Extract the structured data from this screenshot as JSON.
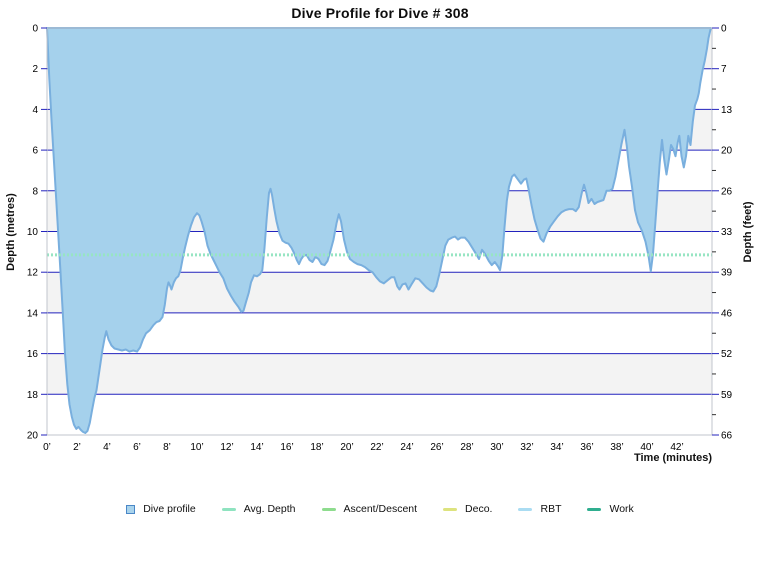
{
  "chart_data": {
    "type": "area",
    "title": "Dive Profile for Dive # 308",
    "x_axis": {
      "label": "Time (minutes)",
      "min": 0,
      "max": 44.33,
      "tick_interval_minutes": 2,
      "tick_labels": [
        "0’",
        "2’",
        "4’",
        "6’",
        "8’",
        "10’",
        "12’",
        "14’",
        "16’",
        "18’",
        "20’",
        "22’",
        "24’",
        "26’",
        "28’",
        "30’",
        "32’",
        "34’",
        "36’",
        "38’",
        "40’",
        "42’"
      ]
    },
    "y_axis_left": {
      "label": "Depth (metres)",
      "min": 0,
      "max": 20,
      "ticks": [
        0,
        2,
        4,
        6,
        8,
        10,
        12,
        14,
        16,
        18,
        20
      ]
    },
    "y_axis_right": {
      "label": "Depth (feet)",
      "tick_labels": [
        "0",
        "7",
        "13",
        "20",
        "26",
        "33",
        "39",
        "46",
        "52",
        "59",
        "66"
      ]
    },
    "avg_depth_m": 11.15,
    "grid": "horizontal lines every 2 m with alternating shaded bands",
    "legend_position": "bottom",
    "series": [
      {
        "name": "Dive profile",
        "units": {
          "x": "minutes",
          "y": "metres"
        },
        "points": [
          [
            0,
            0
          ],
          [
            0.15,
            2.5
          ],
          [
            0.3,
            4.5
          ],
          [
            0.5,
            7
          ],
          [
            0.7,
            9.5
          ],
          [
            0.9,
            12
          ],
          [
            1.05,
            14
          ],
          [
            1.2,
            16
          ],
          [
            1.35,
            17.5
          ],
          [
            1.5,
            18.5
          ],
          [
            1.65,
            19.1
          ],
          [
            1.8,
            19.5
          ],
          [
            1.95,
            19.7
          ],
          [
            2.1,
            19.6
          ],
          [
            2.25,
            19.75
          ],
          [
            2.4,
            19.85
          ],
          [
            2.55,
            19.9
          ],
          [
            2.7,
            19.8
          ],
          [
            2.85,
            19.4
          ],
          [
            3,
            18.8
          ],
          [
            3.15,
            18.2
          ],
          [
            3.3,
            17.8
          ],
          [
            3.5,
            16.8
          ],
          [
            3.7,
            15.8
          ],
          [
            3.85,
            15.2
          ],
          [
            3.95,
            14.9
          ],
          [
            4.1,
            15.3
          ],
          [
            4.3,
            15.6
          ],
          [
            4.5,
            15.75
          ],
          [
            4.75,
            15.8
          ],
          [
            5,
            15.85
          ],
          [
            5.25,
            15.8
          ],
          [
            5.5,
            15.9
          ],
          [
            5.75,
            15.85
          ],
          [
            6,
            15.9
          ],
          [
            6.2,
            15.7
          ],
          [
            6.4,
            15.3
          ],
          [
            6.6,
            15
          ],
          [
            6.85,
            14.85
          ],
          [
            7.1,
            14.6
          ],
          [
            7.3,
            14.45
          ],
          [
            7.5,
            14.4
          ],
          [
            7.7,
            14.2
          ],
          [
            7.85,
            13.6
          ],
          [
            8,
            12.8
          ],
          [
            8.1,
            12.5
          ],
          [
            8.2,
            12.65
          ],
          [
            8.3,
            12.85
          ],
          [
            8.45,
            12.5
          ],
          [
            8.6,
            12.3
          ],
          [
            8.75,
            12.2
          ],
          [
            8.9,
            11.9
          ],
          [
            9.05,
            11.3
          ],
          [
            9.2,
            10.8
          ],
          [
            9.4,
            10.2
          ],
          [
            9.6,
            9.7
          ],
          [
            9.8,
            9.3
          ],
          [
            10,
            9.1
          ],
          [
            10.15,
            9.2
          ],
          [
            10.3,
            9.5
          ],
          [
            10.5,
            10
          ],
          [
            10.7,
            10.7
          ],
          [
            10.9,
            11.1
          ],
          [
            11.1,
            11.4
          ],
          [
            11.3,
            11.7
          ],
          [
            11.5,
            12
          ],
          [
            11.75,
            12.3
          ],
          [
            12,
            12.8
          ],
          [
            12.25,
            13.15
          ],
          [
            12.5,
            13.45
          ],
          [
            12.75,
            13.7
          ],
          [
            12.95,
            13.95
          ],
          [
            13.1,
            13.9
          ],
          [
            13.25,
            13.5
          ],
          [
            13.45,
            13
          ],
          [
            13.6,
            12.5
          ],
          [
            13.8,
            12.15
          ],
          [
            14,
            12.2
          ],
          [
            14.2,
            12.1
          ],
          [
            14.35,
            11.9
          ],
          [
            14.5,
            10.8
          ],
          [
            14.65,
            9.3
          ],
          [
            14.8,
            8.1
          ],
          [
            14.9,
            7.9
          ],
          [
            15,
            8.2
          ],
          [
            15.15,
            8.9
          ],
          [
            15.3,
            9.5
          ],
          [
            15.5,
            10.1
          ],
          [
            15.7,
            10.45
          ],
          [
            15.9,
            10.55
          ],
          [
            16.1,
            10.6
          ],
          [
            16.3,
            10.8
          ],
          [
            16.5,
            11.1
          ],
          [
            16.65,
            11.4
          ],
          [
            16.8,
            11.6
          ],
          [
            16.95,
            11.35
          ],
          [
            17.1,
            11.2
          ],
          [
            17.3,
            11.15
          ],
          [
            17.5,
            11.4
          ],
          [
            17.7,
            11.5
          ],
          [
            17.9,
            11.25
          ],
          [
            18.1,
            11.35
          ],
          [
            18.3,
            11.6
          ],
          [
            18.5,
            11.65
          ],
          [
            18.7,
            11.45
          ],
          [
            18.9,
            10.95
          ],
          [
            19.1,
            10.4
          ],
          [
            19.3,
            9.6
          ],
          [
            19.45,
            9.15
          ],
          [
            19.6,
            9.5
          ],
          [
            19.8,
            10.4
          ],
          [
            20,
            11
          ],
          [
            20.2,
            11.35
          ],
          [
            20.45,
            11.5
          ],
          [
            20.7,
            11.6
          ],
          [
            20.95,
            11.65
          ],
          [
            21.2,
            11.75
          ],
          [
            21.45,
            11.9
          ],
          [
            21.7,
            12
          ],
          [
            21.95,
            12.25
          ],
          [
            22.2,
            12.45
          ],
          [
            22.45,
            12.55
          ],
          [
            22.7,
            12.4
          ],
          [
            22.95,
            12.25
          ],
          [
            23.15,
            12.25
          ],
          [
            23.35,
            12.7
          ],
          [
            23.5,
            12.85
          ],
          [
            23.7,
            12.6
          ],
          [
            23.9,
            12.55
          ],
          [
            24.1,
            12.85
          ],
          [
            24.3,
            12.6
          ],
          [
            24.55,
            12.3
          ],
          [
            24.8,
            12.35
          ],
          [
            25.05,
            12.55
          ],
          [
            25.3,
            12.75
          ],
          [
            25.55,
            12.9
          ],
          [
            25.75,
            12.95
          ],
          [
            25.95,
            12.7
          ],
          [
            26.15,
            12.1
          ],
          [
            26.35,
            11.4
          ],
          [
            26.55,
            10.7
          ],
          [
            26.75,
            10.4
          ],
          [
            27,
            10.3
          ],
          [
            27.2,
            10.25
          ],
          [
            27.4,
            10.4
          ],
          [
            27.6,
            10.3
          ],
          [
            27.85,
            10.3
          ],
          [
            28.1,
            10.5
          ],
          [
            28.35,
            10.8
          ],
          [
            28.6,
            11.1
          ],
          [
            28.8,
            11.35
          ],
          [
            29,
            10.9
          ],
          [
            29.2,
            11.1
          ],
          [
            29.45,
            11.45
          ],
          [
            29.65,
            11.65
          ],
          [
            29.85,
            11.5
          ],
          [
            30.05,
            11.7
          ],
          [
            30.2,
            11.9
          ],
          [
            30.35,
            11.2
          ],
          [
            30.5,
            9.8
          ],
          [
            30.65,
            8.5
          ],
          [
            30.8,
            7.8
          ],
          [
            31,
            7.3
          ],
          [
            31.15,
            7.2
          ],
          [
            31.35,
            7.4
          ],
          [
            31.6,
            7.65
          ],
          [
            31.8,
            7.45
          ],
          [
            31.95,
            7.4
          ],
          [
            32.1,
            7.9
          ],
          [
            32.3,
            8.7
          ],
          [
            32.5,
            9.4
          ],
          [
            32.7,
            9.9
          ],
          [
            32.9,
            10.35
          ],
          [
            33.1,
            10.5
          ],
          [
            33.3,
            10.1
          ],
          [
            33.55,
            9.75
          ],
          [
            33.8,
            9.5
          ],
          [
            34.05,
            9.25
          ],
          [
            34.3,
            9.05
          ],
          [
            34.55,
            8.95
          ],
          [
            34.8,
            8.9
          ],
          [
            35.05,
            8.9
          ],
          [
            35.25,
            9
          ],
          [
            35.45,
            8.8
          ],
          [
            35.65,
            8.1
          ],
          [
            35.8,
            7.7
          ],
          [
            35.95,
            8.1
          ],
          [
            36.1,
            8.6
          ],
          [
            36.3,
            8.4
          ],
          [
            36.5,
            8.65
          ],
          [
            36.7,
            8.55
          ],
          [
            36.9,
            8.5
          ],
          [
            37.1,
            8.45
          ],
          [
            37.3,
            8
          ],
          [
            37.5,
            8
          ],
          [
            37.7,
            7.9
          ],
          [
            37.9,
            7.3
          ],
          [
            38.1,
            6.5
          ],
          [
            38.3,
            5.7
          ],
          [
            38.5,
            5
          ],
          [
            38.65,
            5.8
          ],
          [
            38.8,
            6.8
          ],
          [
            39,
            7.8
          ],
          [
            39.2,
            8.95
          ],
          [
            39.4,
            9.55
          ],
          [
            39.65,
            9.95
          ],
          [
            39.9,
            10.5
          ],
          [
            40.1,
            11.2
          ],
          [
            40.25,
            11.95
          ],
          [
            40.4,
            11.1
          ],
          [
            40.55,
            9.6
          ],
          [
            40.7,
            8.1
          ],
          [
            40.85,
            6.6
          ],
          [
            41,
            5.5
          ],
          [
            41.15,
            6.5
          ],
          [
            41.3,
            7.2
          ],
          [
            41.45,
            6.5
          ],
          [
            41.6,
            5.75
          ],
          [
            41.75,
            5.95
          ],
          [
            41.9,
            6.3
          ],
          [
            42.05,
            5.6
          ],
          [
            42.15,
            5.3
          ],
          [
            42.3,
            6.3
          ],
          [
            42.45,
            6.85
          ],
          [
            42.6,
            6.3
          ],
          [
            42.75,
            5.3
          ],
          [
            42.9,
            5.75
          ],
          [
            43.05,
            4.6
          ],
          [
            43.2,
            3.8
          ],
          [
            43.35,
            3.5
          ],
          [
            43.45,
            3.2
          ],
          [
            43.55,
            2.7
          ],
          [
            43.7,
            2.1
          ],
          [
            43.85,
            1.6
          ],
          [
            44,
            1
          ],
          [
            44.1,
            0.5
          ],
          [
            44.25,
            0
          ]
        ]
      }
    ],
    "colors": {
      "area_fill": "#a5d1ec",
      "area_stroke": "#79afde",
      "grid": "#2323bd",
      "band": "#f3f3f3",
      "frame": "#c0c4cc",
      "avg_line": "#97e5c3",
      "minor_tick": "#333333"
    }
  },
  "legend": {
    "items": [
      {
        "label": "Dive profile",
        "marker": "square",
        "color": "#a9d3ec",
        "border": "#4a87c7"
      },
      {
        "label": "Avg. Depth",
        "marker": "dash",
        "color": "#8fe3c0"
      },
      {
        "label": "Ascent/Descent",
        "marker": "dash",
        "color": "#8edc8e"
      },
      {
        "label": "Deco.",
        "marker": "dash",
        "color": "#dde37e"
      },
      {
        "label": "RBT",
        "marker": "dash",
        "color": "#aadcf2"
      },
      {
        "label": "Work",
        "marker": "dash",
        "color": "#2fae8f"
      }
    ]
  }
}
